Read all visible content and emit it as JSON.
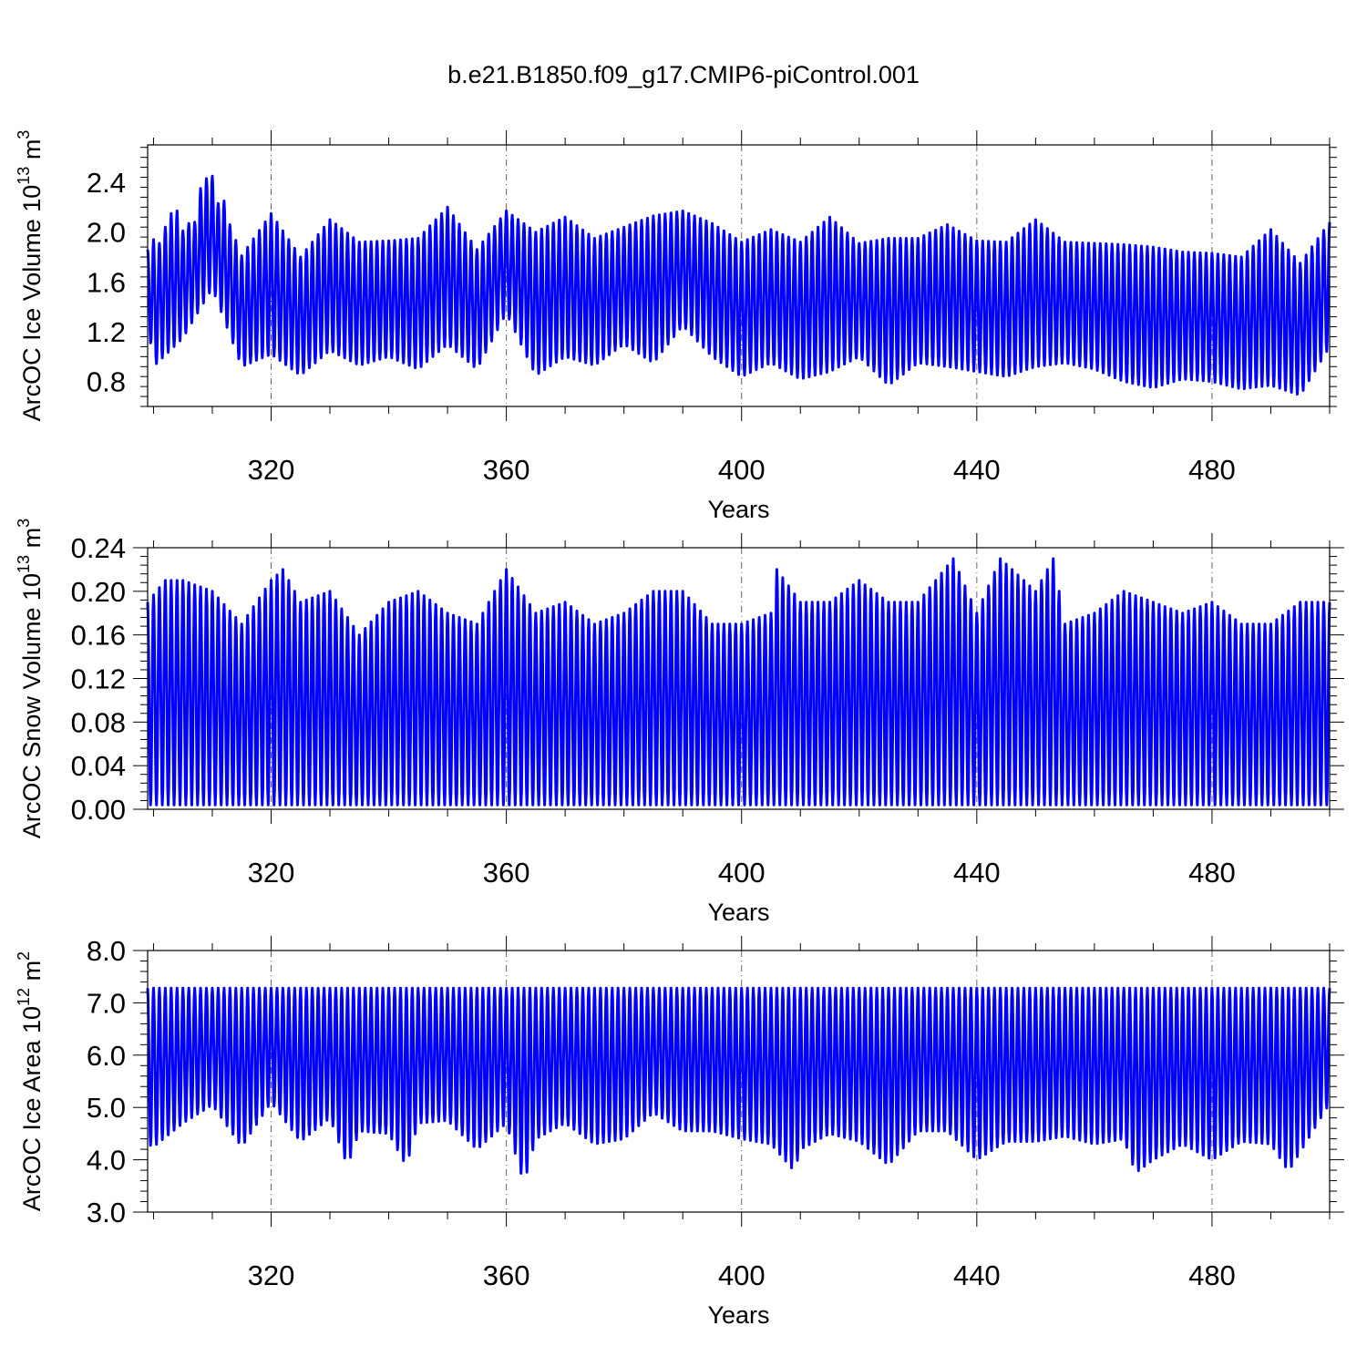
{
  "figure": {
    "title": "b.e21.B1850.f09_g17.CMIP6-piControl.001"
  },
  "chart_data": [
    {
      "type": "line",
      "ylabel": "ArcOC Ice Volume 10",
      "ylabel_exp": "13",
      "ylabel_unit": " m",
      "ylabel_unit_exp": "3",
      "xlabel": "Years",
      "xlim": [
        299,
        500
      ],
      "ylim": [
        0.6,
        2.7
      ],
      "yticks": [
        "0.8",
        "1.2",
        "1.6",
        "2.0",
        "2.4"
      ],
      "xticks": [
        "320",
        "360",
        "400",
        "440",
        "480"
      ],
      "color": "#0000ff",
      "cycle_years": 1,
      "year_range": [
        299,
        500
      ],
      "peak_years": [
        299,
        300,
        301,
        302,
        303,
        304,
        305,
        306,
        307,
        308,
        309,
        310,
        311,
        312,
        313,
        315,
        320,
        325,
        330,
        335,
        340,
        345,
        350,
        355,
        360,
        365,
        370,
        375,
        380,
        385,
        390,
        395,
        400,
        405,
        410,
        415,
        420,
        425,
        430,
        435,
        440,
        445,
        450,
        455,
        460,
        465,
        470,
        475,
        480,
        485,
        490,
        495,
        500
      ],
      "peak_values": [
        1.86,
        1.94,
        1.91,
        2.04,
        2.15,
        2.17,
        2.01,
        2.07,
        2.08,
        2.35,
        2.43,
        2.45,
        2.23,
        2.25,
        2.06,
        1.81,
        2.15,
        1.8,
        2.1,
        1.92,
        1.93,
        1.95,
        2.2,
        1.86,
        2.17,
        2.0,
        2.12,
        1.95,
        2.04,
        2.13,
        2.17,
        2.07,
        1.92,
        2.02,
        1.92,
        2.12,
        1.91,
        1.95,
        1.95,
        2.06,
        1.93,
        1.92,
        2.1,
        1.92,
        1.91,
        1.9,
        1.88,
        1.84,
        1.83,
        1.8,
        2.02,
        1.75,
        2.08
      ],
      "trough_years": [
        299,
        300,
        305,
        310,
        315,
        320,
        325,
        330,
        335,
        340,
        345,
        350,
        355,
        360,
        365,
        370,
        375,
        380,
        385,
        390,
        395,
        400,
        405,
        410,
        415,
        420,
        425,
        430,
        435,
        440,
        445,
        450,
        455,
        460,
        465,
        470,
        475,
        480,
        485,
        490,
        495,
        500
      ],
      "trough_values": [
        1.3,
        0.92,
        1.15,
        1.55,
        0.92,
        1.02,
        0.85,
        1.05,
        0.93,
        1.0,
        0.9,
        1.1,
        0.9,
        1.35,
        0.85,
        1.0,
        0.93,
        1.1,
        0.95,
        1.25,
        1.0,
        0.84,
        0.95,
        0.82,
        0.88,
        1.0,
        0.77,
        0.95,
        0.92,
        0.88,
        0.84,
        0.92,
        0.95,
        0.9,
        0.8,
        0.75,
        0.82,
        0.8,
        0.74,
        0.77,
        0.69,
        1.08
      ]
    },
    {
      "type": "line",
      "ylabel": "ArcOC Snow Volume 10",
      "ylabel_exp": "13",
      "ylabel_unit": " m",
      "ylabel_unit_exp": "3",
      "xlabel": "Years",
      "xlim": [
        299,
        500
      ],
      "ylim": [
        0.0,
        0.24
      ],
      "yticks": [
        "0.00",
        "0.04",
        "0.08",
        "0.12",
        "0.16",
        "0.20",
        "0.24"
      ],
      "xticks": [
        "320",
        "360",
        "400",
        "440",
        "480"
      ],
      "color": "#0000ff",
      "cycle_years": 1,
      "year_range": [
        299,
        500
      ],
      "peak_years": [
        299,
        302,
        305,
        310,
        315,
        320,
        322,
        325,
        330,
        335,
        340,
        345,
        350,
        355,
        360,
        365,
        370,
        375,
        380,
        385,
        390,
        395,
        400,
        405,
        406,
        410,
        415,
        420,
        425,
        430,
        436,
        440,
        444,
        450,
        453,
        455,
        460,
        465,
        470,
        475,
        480,
        485,
        490,
        495,
        500
      ],
      "peak_values": [
        0.19,
        0.21,
        0.21,
        0.2,
        0.17,
        0.21,
        0.22,
        0.19,
        0.2,
        0.16,
        0.19,
        0.2,
        0.18,
        0.17,
        0.22,
        0.18,
        0.19,
        0.17,
        0.18,
        0.2,
        0.2,
        0.17,
        0.17,
        0.18,
        0.22,
        0.19,
        0.19,
        0.21,
        0.19,
        0.19,
        0.23,
        0.18,
        0.23,
        0.2,
        0.23,
        0.17,
        0.18,
        0.2,
        0.19,
        0.18,
        0.19,
        0.17,
        0.17,
        0.19,
        0.19
      ],
      "trough_years": [
        299,
        500
      ],
      "trough_values": [
        0.004,
        0.004
      ]
    },
    {
      "type": "line",
      "ylabel": "ArcOC Ice Area 10",
      "ylabel_exp": "12",
      "ylabel_unit": " m",
      "ylabel_unit_exp": "2",
      "xlabel": "Years",
      "xlim": [
        299,
        500
      ],
      "ylim": [
        3.0,
        8.0
      ],
      "yticks": [
        "3.0",
        "4.0",
        "5.0",
        "6.0",
        "7.0",
        "8.0"
      ],
      "xticks": [
        "320",
        "360",
        "400",
        "440",
        "480"
      ],
      "color": "#0000ff",
      "cycle_years": 1,
      "year_range": [
        299,
        500
      ],
      "peak_years": [
        299,
        500
      ],
      "peak_values": [
        7.28,
        7.28
      ],
      "trough_years": [
        299,
        300,
        305,
        310,
        315,
        320,
        325,
        330,
        333,
        335,
        340,
        343,
        345,
        350,
        355,
        360,
        363,
        365,
        370,
        375,
        380,
        385,
        390,
        395,
        400,
        405,
        409,
        410,
        415,
        420,
        425,
        430,
        435,
        440,
        445,
        450,
        455,
        460,
        465,
        467,
        470,
        475,
        480,
        485,
        490,
        493,
        495,
        500
      ],
      "trough_values": [
        4.3,
        4.25,
        4.7,
        5.05,
        4.25,
        5.1,
        4.35,
        4.8,
        3.88,
        4.55,
        4.5,
        3.88,
        4.7,
        4.75,
        4.2,
        4.7,
        3.55,
        4.4,
        4.7,
        4.3,
        4.4,
        4.9,
        4.55,
        4.55,
        4.4,
        4.3,
        3.78,
        4.2,
        4.5,
        4.35,
        3.9,
        4.55,
        4.55,
        4.0,
        4.35,
        4.35,
        4.45,
        4.3,
        4.4,
        3.75,
        4.0,
        4.3,
        4.0,
        4.35,
        4.3,
        3.78,
        4.15,
        5.08
      ]
    }
  ]
}
